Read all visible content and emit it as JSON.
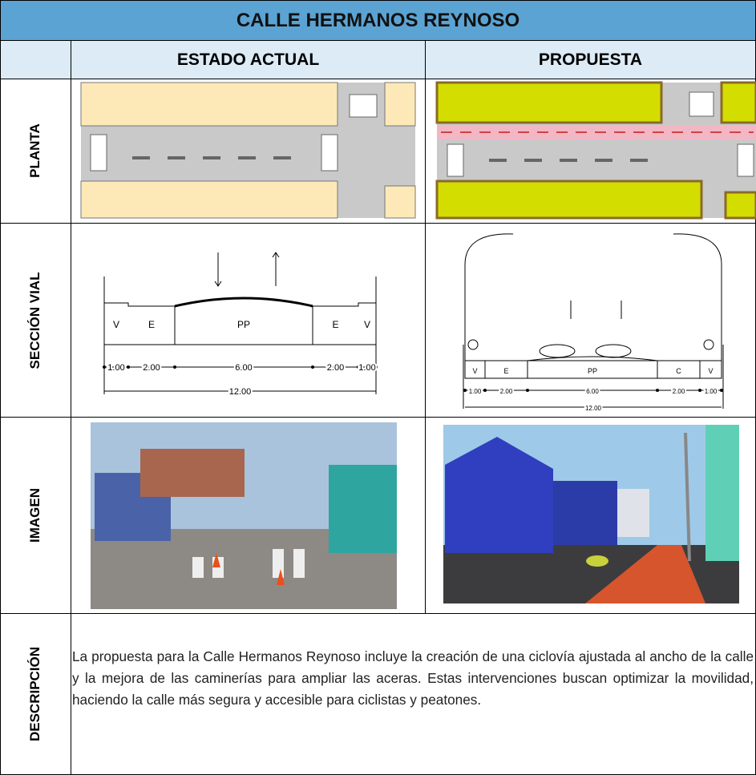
{
  "header": {
    "title": "CALLE HERMANOS REYNOSO"
  },
  "columns": [
    "ESTADO ACTUAL",
    "PROPUESTA"
  ],
  "row_labels": [
    "PLANTA",
    "SECCIÓN VIAL",
    "IMAGEN",
    "DESCRIPCIÓN"
  ],
  "section_current": {
    "zones": [
      "V",
      "E",
      "PP",
      "E",
      "V"
    ],
    "widths": [
      "1.00",
      "2.00",
      "6.00",
      "2.00",
      "1.00"
    ],
    "total": "12.00"
  },
  "section_proposal": {
    "zones": [
      "V",
      "E",
      "PP",
      "C",
      "V"
    ],
    "widths": [
      "1.00",
      "2.00",
      "6.00",
      "2.00",
      "1.00"
    ],
    "total": "12.00"
  },
  "description": "La propuesta para la Calle Hermanos Reynoso incluye la creación de una ciclovía ajustada al ancho de la calle y la mejora de las caminerías para ampliar las aceras. Estas intervenciones buscan optimizar la movilidad, haciendo la calle más segura y accesible para ciclistas y peatones."
}
